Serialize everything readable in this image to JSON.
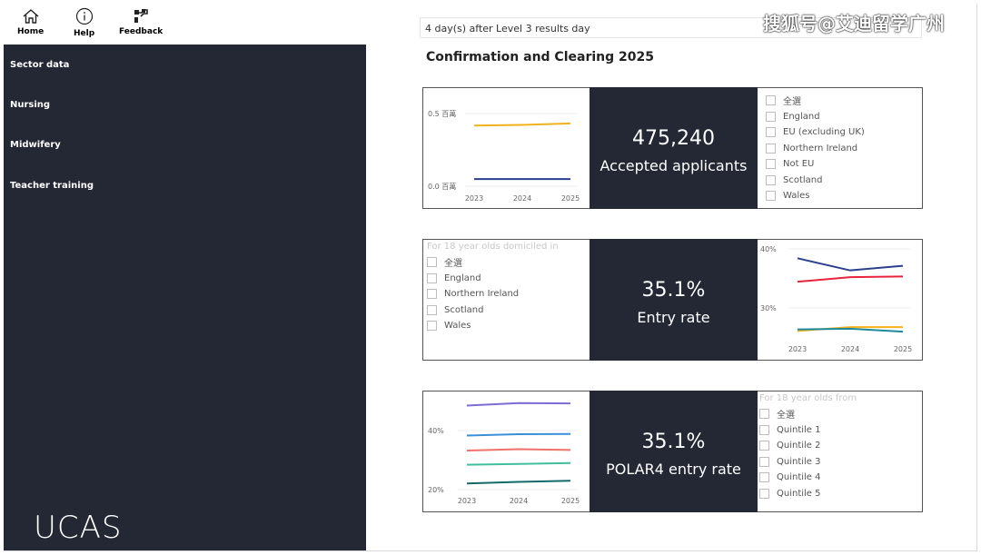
{
  "topnav": {
    "home_label": "Home",
    "help_label": "Help",
    "feedback_label": "Feedback"
  },
  "sidebar": {
    "items": [
      {
        "label": "Sector data"
      },
      {
        "label": "Nursing"
      },
      {
        "label": "Midwifery"
      },
      {
        "label": "Teacher training"
      }
    ],
    "logo_text": "UCAS",
    "background": "#242834"
  },
  "header": {
    "days_text": "4 day(s) after Level 3 results day",
    "title": "Confirmation and Clearing 2025",
    "watermark": "搜狐号@艾迪留学广州"
  },
  "panels": [
    {
      "kpi_value": "475,240",
      "kpi_label": "Accepted applicants",
      "slicer_header": "",
      "slicer_options": [
        "全選",
        "England",
        "EU (excluding UK)",
        "Northern Ireland",
        "Not EU",
        "Scotland",
        "Wales"
      ]
    },
    {
      "kpi_value": "35.1%",
      "kpi_label": "Entry rate",
      "slicer_header": "For 18 year olds domiciled in",
      "slicer_options": [
        "全選",
        "England",
        "Northern Ireland",
        "Scotland",
        "Wales"
      ]
    },
    {
      "kpi_value": "35.1%",
      "kpi_label": "POLAR4 entry rate",
      "slicer_header": "For 18 year olds from",
      "slicer_options": [
        "全選",
        "Quintile 1",
        "Quintile 2",
        "Quintile 3",
        "Quintile 4",
        "Quintile 5"
      ]
    }
  ],
  "chart_data": [
    {
      "type": "line",
      "x": [
        "2023",
        "2024",
        "2025"
      ],
      "y_tick_labels": [
        "0.5 百萬",
        "0.0 百萬"
      ],
      "ylim": [
        0,
        0.55
      ],
      "series": [
        {
          "color": "#f2b21c",
          "values": [
            0.42,
            0.425,
            0.435
          ]
        },
        {
          "color": "#2b3f8f",
          "values": [
            0.06,
            0.06,
            0.06
          ]
        }
      ]
    },
    {
      "type": "line",
      "x": [
        "2023",
        "2024",
        "2025"
      ],
      "y_tick_labels": [
        "40%",
        "30%"
      ],
      "ylim": [
        28,
        40
      ],
      "series": [
        {
          "color": "#2b3f8f",
          "values": [
            39.0,
            37.4,
            38.0
          ]
        },
        {
          "color": "#e8243c",
          "values": [
            35.9,
            36.5,
            36.6
          ]
        },
        {
          "color": "#f2b21c",
          "values": [
            29.4,
            29.9,
            29.9
          ]
        },
        {
          "color": "#1f8a9e",
          "values": [
            29.6,
            29.7,
            29.3
          ]
        }
      ]
    },
    {
      "type": "line",
      "x": [
        "2023",
        "2024",
        "2025"
      ],
      "y_tick_labels": [
        "40%",
        "20%"
      ],
      "ylim": [
        18,
        52
      ],
      "series": [
        {
          "color": "#7d6bd6",
          "values": [
            49.5,
            50.4,
            50.3
          ]
        },
        {
          "color": "#3b8fd8",
          "values": [
            38.5,
            39.0,
            39.1
          ]
        },
        {
          "color": "#f0706a",
          "values": [
            33.0,
            33.5,
            33.2
          ]
        },
        {
          "color": "#3fbf9f",
          "values": [
            27.8,
            28.1,
            28.4
          ]
        },
        {
          "color": "#146a6a",
          "values": [
            20.9,
            21.5,
            21.9
          ]
        }
      ]
    }
  ]
}
